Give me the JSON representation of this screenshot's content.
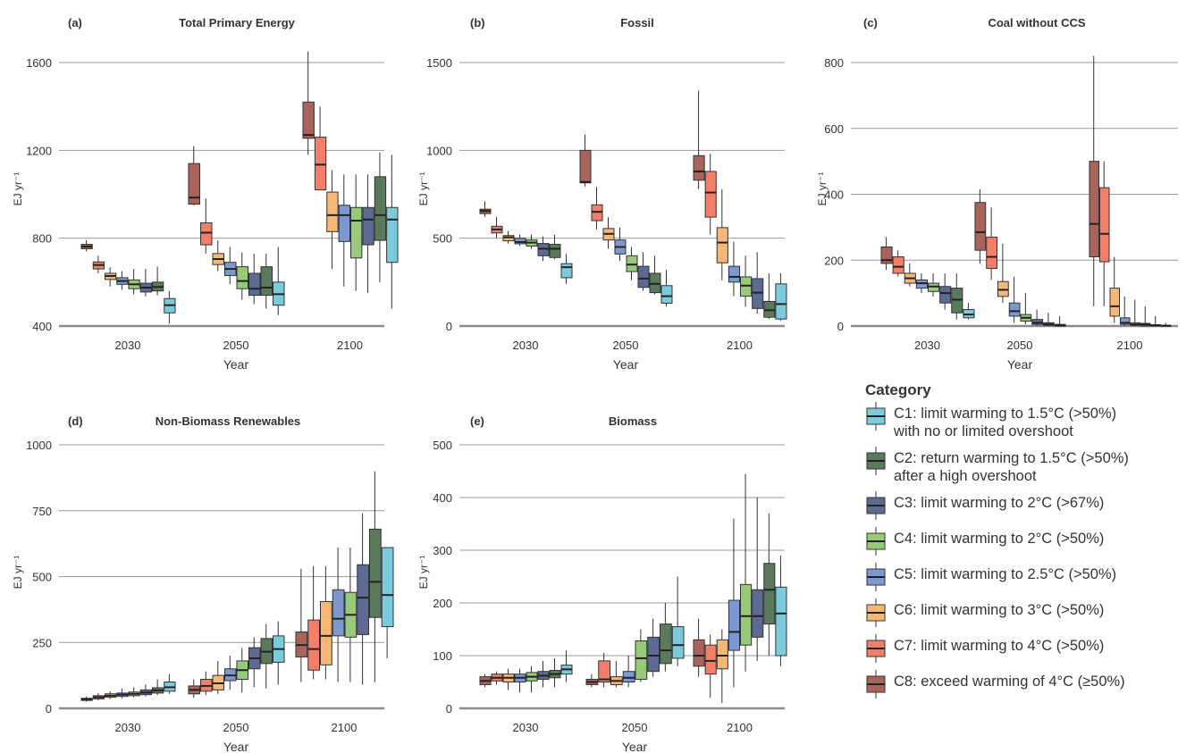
{
  "categories": [
    {
      "id": "C1",
      "label": "C1: limit warming to 1.5°C (>50%)\nwith no or limited overshoot",
      "color": "#7ccbdc"
    },
    {
      "id": "C2",
      "label": "C2: return warming to 1.5°C (>50%)\nafter a high overshoot",
      "color": "#5b7a5b"
    },
    {
      "id": "C3",
      "label": "C3: limit warming to 2°C (>67%)",
      "color": "#5d6a92"
    },
    {
      "id": "C4",
      "label": "C4: limit warming to 2°C (>50%)",
      "color": "#97c97a"
    },
    {
      "id": "C5",
      "label": "C5: limit warming to 2.5°C (>50%)",
      "color": "#7c99cf"
    },
    {
      "id": "C6",
      "label": "C6: limit warming to 3°C (>50%)",
      "color": "#f7b877"
    },
    {
      "id": "C7",
      "label": "C7: limit warming to 4°C (>50%)",
      "color": "#f37f6a"
    },
    {
      "id": "C8",
      "label": "C8: exceed warming of 4°C (≥50%)",
      "color": "#a8635a"
    }
  ],
  "legend": {
    "title": "Category"
  },
  "series_order": [
    "C8",
    "C7",
    "C6",
    "C5",
    "C4",
    "C3",
    "C2",
    "C1"
  ],
  "chart_data": [
    {
      "type": "box",
      "panel": "(a)",
      "title": "Total Primary Energy",
      "ylabel": "EJ yr⁻¹",
      "xlabel": "Year",
      "ylim": [
        400,
        1700
      ],
      "yticks": [
        400,
        800,
        1200,
        1600
      ],
      "years": [
        "2030",
        "2050",
        "2100"
      ],
      "boxes": {
        "2030": [
          [
            740,
            752,
            762,
            772,
            792
          ],
          [
            640,
            660,
            678,
            692,
            720
          ],
          [
            580,
            612,
            628,
            640,
            668
          ],
          [
            565,
            590,
            605,
            620,
            650
          ],
          [
            545,
            570,
            590,
            610,
            660
          ],
          [
            535,
            555,
            575,
            595,
            660
          ],
          [
            540,
            560,
            578,
            600,
            670
          ],
          [
            410,
            460,
            495,
            525,
            560
          ]
        ],
        "2050": [
          [
            950,
            955,
            985,
            1140,
            1220
          ],
          [
            730,
            770,
            825,
            870,
            980
          ],
          [
            650,
            680,
            705,
            730,
            790
          ],
          [
            590,
            630,
            660,
            690,
            760
          ],
          [
            520,
            570,
            605,
            670,
            735
          ],
          [
            500,
            540,
            570,
            640,
            730
          ],
          [
            480,
            540,
            575,
            670,
            730
          ],
          [
            450,
            495,
            545,
            600,
            760
          ]
        ],
        "2100": [
          [
            1180,
            1255,
            1270,
            1420,
            1650
          ],
          [
            1050,
            1020,
            1135,
            1260,
            1400
          ],
          [
            660,
            830,
            905,
            1010,
            1110
          ],
          [
            580,
            785,
            905,
            950,
            1090
          ],
          [
            560,
            710,
            880,
            940,
            1090
          ],
          [
            550,
            770,
            885,
            940,
            1090
          ],
          [
            600,
            790,
            905,
            1080,
            1190
          ],
          [
            480,
            690,
            885,
            940,
            1180
          ]
        ]
      }
    },
    {
      "type": "box",
      "panel": "(b)",
      "title": "Fossil",
      "ylabel": "EJ yr⁻¹",
      "xlabel": "Year",
      "ylim": [
        0,
        1600
      ],
      "yticks": [
        0,
        500,
        1000,
        1500
      ],
      "years": [
        "2030",
        "2050",
        "2100"
      ],
      "boxes": {
        "2030": [
          [
            620,
            640,
            655,
            665,
            710
          ],
          [
            500,
            530,
            550,
            568,
            620
          ],
          [
            470,
            485,
            505,
            515,
            540
          ],
          [
            455,
            468,
            478,
            500,
            520
          ],
          [
            440,
            455,
            475,
            490,
            520
          ],
          [
            370,
            400,
            440,
            470,
            510
          ],
          [
            380,
            390,
            440,
            465,
            520
          ],
          [
            240,
            275,
            335,
            355,
            410
          ]
        ],
        "2050": [
          [
            795,
            815,
            820,
            1000,
            1090
          ],
          [
            550,
            600,
            650,
            690,
            790
          ],
          [
            440,
            490,
            525,
            555,
            620
          ],
          [
            370,
            410,
            450,
            490,
            560
          ],
          [
            260,
            310,
            350,
            400,
            450
          ],
          [
            200,
            220,
            270,
            340,
            420
          ],
          [
            180,
            190,
            240,
            300,
            400
          ],
          [
            110,
            130,
            170,
            230,
            320
          ]
        ],
        "2100": [
          [
            780,
            830,
            880,
            970,
            1340
          ],
          [
            520,
            620,
            760,
            880,
            980
          ],
          [
            260,
            360,
            475,
            560,
            780
          ],
          [
            170,
            250,
            280,
            340,
            480
          ],
          [
            110,
            170,
            230,
            280,
            400
          ],
          [
            70,
            100,
            190,
            270,
            420
          ],
          [
            40,
            50,
            90,
            140,
            300
          ],
          [
            30,
            40,
            125,
            240,
            300
          ]
        ]
      }
    },
    {
      "type": "box",
      "panel": "(c)",
      "title": "Coal without CCS",
      "ylabel": "EJ yr⁻¹",
      "xlabel": "Year",
      "ylim": [
        0,
        850
      ],
      "yticks": [
        0,
        200,
        400,
        600,
        800
      ],
      "years": [
        "2030",
        "2050",
        "2100"
      ],
      "boxes": {
        "2030": [
          [
            170,
            190,
            200,
            240,
            270
          ],
          [
            150,
            160,
            180,
            210,
            230
          ],
          [
            120,
            130,
            145,
            160,
            190
          ],
          [
            100,
            115,
            130,
            140,
            160
          ],
          [
            90,
            105,
            120,
            130,
            160
          ],
          [
            50,
            70,
            100,
            120,
            160
          ],
          [
            20,
            40,
            80,
            115,
            160
          ],
          [
            20,
            25,
            35,
            50,
            70
          ]
        ],
        "2050": [
          [
            190,
            230,
            285,
            375,
            415
          ],
          [
            140,
            175,
            210,
            270,
            360
          ],
          [
            70,
            90,
            110,
            135,
            250
          ],
          [
            10,
            30,
            45,
            70,
            150
          ],
          [
            5,
            15,
            25,
            35,
            100
          ],
          [
            0,
            5,
            10,
            20,
            50
          ],
          [
            0,
            2,
            5,
            10,
            40
          ],
          [
            0,
            0,
            2,
            5,
            30
          ]
        ],
        "2100": [
          [
            60,
            210,
            310,
            500,
            820
          ],
          [
            60,
            195,
            280,
            420,
            500
          ],
          [
            10,
            30,
            60,
            115,
            210
          ],
          [
            0,
            5,
            10,
            25,
            90
          ],
          [
            0,
            2,
            5,
            10,
            80
          ],
          [
            0,
            0,
            5,
            8,
            60
          ],
          [
            0,
            0,
            2,
            4,
            30
          ],
          [
            0,
            0,
            1,
            2,
            10
          ]
        ]
      }
    },
    {
      "type": "box",
      "panel": "(d)",
      "title": "Non-Biomass Renewables",
      "ylabel": "EJ yr⁻¹",
      "xlabel": "Year",
      "ylim": [
        0,
        1000
      ],
      "yticks": [
        0,
        250,
        500,
        750,
        1000
      ],
      "years": [
        "2030",
        "2050",
        "2100"
      ],
      "boxes": {
        "2030": [
          [
            25,
            30,
            35,
            38,
            45
          ],
          [
            30,
            36,
            42,
            48,
            58
          ],
          [
            35,
            42,
            48,
            55,
            65
          ],
          [
            38,
            45,
            52,
            58,
            75
          ],
          [
            42,
            48,
            55,
            62,
            80
          ],
          [
            45,
            52,
            60,
            70,
            90
          ],
          [
            50,
            58,
            68,
            78,
            110
          ],
          [
            55,
            65,
            80,
            100,
            130
          ]
        ],
        "2050": [
          [
            40,
            55,
            70,
            85,
            110
          ],
          [
            50,
            65,
            85,
            110,
            140
          ],
          [
            55,
            70,
            95,
            125,
            180
          ],
          [
            70,
            105,
            125,
            150,
            200
          ],
          [
            60,
            110,
            145,
            180,
            230
          ],
          [
            80,
            150,
            190,
            230,
            270
          ],
          [
            75,
            170,
            215,
            265,
            320
          ],
          [
            90,
            175,
            225,
            275,
            330
          ]
        ],
        "2100": [
          [
            100,
            195,
            240,
            290,
            530
          ],
          [
            110,
            145,
            225,
            335,
            540
          ],
          [
            110,
            165,
            275,
            405,
            540
          ],
          [
            100,
            275,
            340,
            450,
            610
          ],
          [
            100,
            270,
            355,
            440,
            610
          ],
          [
            90,
            280,
            420,
            545,
            740
          ],
          [
            100,
            345,
            480,
            680,
            900
          ],
          [
            190,
            310,
            430,
            610,
            600
          ]
        ]
      }
    },
    {
      "type": "box",
      "panel": "(e)",
      "title": "Biomass",
      "ylabel": "EJ yr⁻¹",
      "xlabel": "Year",
      "ylim": [
        0,
        500
      ],
      "yticks": [
        0,
        100,
        200,
        300,
        400,
        500
      ],
      "years": [
        "2030",
        "2050",
        "2100"
      ],
      "boxes": {
        "2030": [
          [
            40,
            45,
            52,
            60,
            65
          ],
          [
            45,
            52,
            58,
            65,
            70
          ],
          [
            35,
            50,
            58,
            65,
            75
          ],
          [
            30,
            50,
            58,
            65,
            75
          ],
          [
            30,
            52,
            60,
            68,
            80
          ],
          [
            40,
            55,
            62,
            70,
            90
          ],
          [
            40,
            58,
            65,
            72,
            95
          ],
          [
            50,
            65,
            74,
            82,
            110
          ]
        ],
        "2050": [
          [
            40,
            45,
            50,
            55,
            65
          ],
          [
            40,
            50,
            55,
            90,
            105
          ],
          [
            40,
            45,
            52,
            60,
            90
          ],
          [
            40,
            50,
            58,
            70,
            100
          ],
          [
            50,
            55,
            95,
            128,
            150
          ],
          [
            60,
            70,
            100,
            135,
            170
          ],
          [
            70,
            85,
            110,
            160,
            200
          ],
          [
            80,
            95,
            120,
            155,
            250
          ]
        ],
        "2100": [
          [
            60,
            80,
            100,
            130,
            170
          ],
          [
            20,
            65,
            90,
            120,
            140
          ],
          [
            10,
            75,
            100,
            130,
            150
          ],
          [
            40,
            110,
            145,
            205,
            360
          ],
          [
            70,
            120,
            175,
            235,
            445
          ],
          [
            90,
            135,
            175,
            225,
            400
          ],
          [
            100,
            160,
            225,
            275,
            370
          ],
          [
            80,
            100,
            180,
            230,
            290
          ]
        ]
      }
    }
  ]
}
